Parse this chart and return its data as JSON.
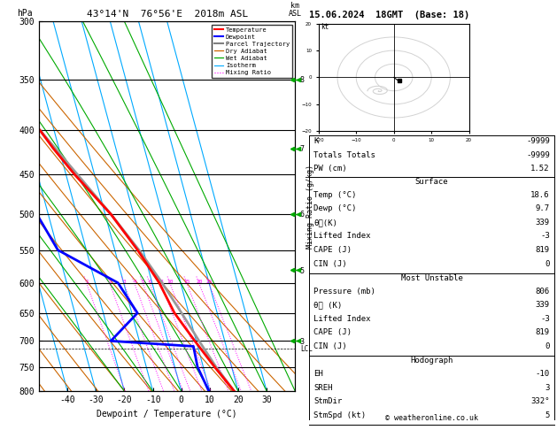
{
  "title_left": "43°14'N  76°56'E  2018m ASL",
  "title_right": "15.06.2024  18GMT  (Base: 18)",
  "xlabel": "Dewpoint / Temperature (°C)",
  "p_levels": [
    300,
    350,
    400,
    450,
    500,
    550,
    600,
    650,
    700,
    750,
    800
  ],
  "p_min": 300,
  "p_max": 800,
  "t_min": -50,
  "t_max": 40,
  "skew_factor": 35.0,
  "temp_profile_p": [
    800,
    750,
    700,
    650,
    600,
    550,
    500,
    450,
    420,
    400,
    370,
    350,
    300
  ],
  "temp_profile_t": [
    18.6,
    14.0,
    9.5,
    5.0,
    2.5,
    -2.0,
    -8.0,
    -17.0,
    -22.0,
    -25.0,
    -35.0,
    -38.0,
    -52.0
  ],
  "dewp_profile_p": [
    800,
    750,
    710,
    700,
    650,
    600,
    550,
    500,
    450,
    400,
    350,
    300
  ],
  "dewp_profile_t": [
    9.7,
    8.0,
    8.5,
    -20.0,
    -8.0,
    -12.0,
    -30.0,
    -34.0,
    -37.0,
    -44.0,
    -55.0,
    -65.0
  ],
  "parcel_profile_p": [
    800,
    750,
    700,
    650,
    600,
    550,
    500,
    450,
    400,
    350,
    300
  ],
  "parcel_profile_t": [
    18.6,
    14.5,
    11.0,
    7.5,
    3.5,
    -1.5,
    -8.0,
    -16.0,
    -25.0,
    -38.0,
    -52.0
  ],
  "lcl_pressure": 715,
  "isotherm_temps": [
    -50,
    -40,
    -30,
    -20,
    -10,
    0,
    10,
    20,
    30
  ],
  "dry_adiabat_theta": [
    240,
    250,
    260,
    270,
    280,
    290,
    300,
    310,
    320,
    330,
    340
  ],
  "wet_adiabat_t0": [
    -20,
    -10,
    0,
    10,
    20,
    30,
    40
  ],
  "mixing_ratios": [
    1,
    2,
    3,
    4,
    5,
    6,
    8,
    10,
    15,
    20,
    25
  ],
  "km_asl_ticks": {
    "350": "8",
    "420": "7",
    "500": "6",
    "580": "5",
    "700": "3"
  },
  "colors": {
    "temperature": "#ff0000",
    "dewpoint": "#0000ff",
    "parcel": "#999999",
    "dry_adiabat": "#cc6600",
    "wet_adiabat": "#00aa00",
    "isotherm": "#00aaff",
    "mixing_ratio": "#ff00ff"
  },
  "info_K": "K",
  "info_K_val": "-9999",
  "info_TT": "Totals Totals",
  "info_TT_val": "-9999",
  "info_PW": "PW (cm)",
  "info_PW_val": "1.52",
  "surf_temp": "18.6",
  "surf_dewp": "9.7",
  "surf_theta": "339",
  "surf_li": "-3",
  "surf_cape": "819",
  "surf_cin": "0",
  "mu_press": "806",
  "mu_theta": "339",
  "mu_li": "-3",
  "mu_cape": "819",
  "mu_cin": "0",
  "hodo_eh": "-10",
  "hodo_sreh": "3",
  "hodo_stmdir": "332°",
  "hodo_stmspd": "5",
  "copyright": "© weatheronline.co.uk"
}
